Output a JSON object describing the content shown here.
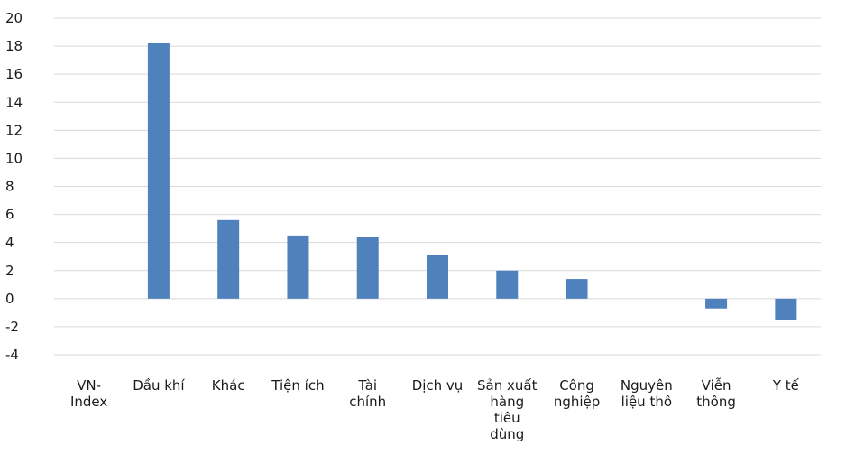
{
  "chart_data": {
    "type": "bar",
    "categories": [
      [
        "VN-",
        "Index"
      ],
      [
        "Dầu khí"
      ],
      [
        "Khác"
      ],
      [
        "Tiện ích"
      ],
      [
        "Tài",
        "chính"
      ],
      [
        "Dịch vụ"
      ],
      [
        "Sản xuất",
        "hàng",
        "tiêu",
        "dùng"
      ],
      [
        "Công",
        "nghiệp"
      ],
      [
        "Nguyên",
        "liệu thô"
      ],
      [
        "Viễn",
        "thông"
      ],
      [
        "Y tế"
      ]
    ],
    "values": [
      0,
      18.2,
      5.6,
      4.5,
      4.4,
      3.1,
      2.0,
      1.4,
      0,
      -0.7,
      -1.5
    ],
    "ylim": [
      -4,
      20
    ],
    "yticks": [
      20,
      18,
      16,
      14,
      12,
      10,
      8,
      6,
      4,
      2,
      0,
      -2,
      -4
    ],
    "bar_color": "#4f81bd",
    "grid": true,
    "legend": "none"
  }
}
